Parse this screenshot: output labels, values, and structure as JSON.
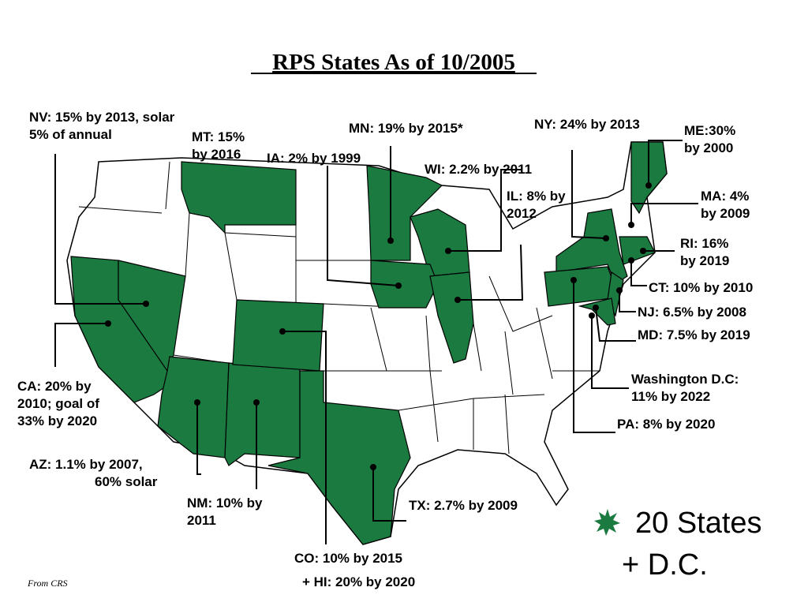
{
  "title": "RPS States As of 10/2005",
  "labels": [
    {
      "lines": [
        "NV: 15% by 2013, solar",
        "5% of annual"
      ]
    },
    {
      "lines": [
        "MT: 15%",
        "by 2016"
      ]
    },
    {
      "lines": [
        "IA: 2% by 1999"
      ]
    },
    {
      "lines": [
        "MN: 19% by 2015*"
      ]
    },
    {
      "lines": [
        "NY: 24% by 2013"
      ]
    },
    {
      "lines": [
        "ME:30%",
        "by 2000"
      ]
    },
    {
      "lines": [
        "WI: 2.2% by 2011"
      ]
    },
    {
      "lines": [
        "IL: 8% by",
        "2012"
      ]
    },
    {
      "lines": [
        "MA: 4%",
        "by 2009"
      ]
    },
    {
      "lines": [
        "RI: 16%",
        "by 2019"
      ]
    },
    {
      "lines": [
        "CT: 10% by 2010"
      ]
    },
    {
      "lines": [
        "NJ: 6.5% by 2008"
      ]
    },
    {
      "lines": [
        "MD: 7.5% by 2019"
      ]
    },
    {
      "lines": [
        "Washington D.C:",
        "11% by 2022"
      ]
    },
    {
      "lines": [
        "PA: 8% by 2020"
      ]
    },
    {
      "lines": [
        "CA: 20% by",
        "2010; goal of",
        "33% by 2020"
      ]
    },
    {
      "lines": [
        "AZ: 1.1%  by 2007,",
        "60% solar"
      ]
    },
    {
      "lines": [
        "NM: 10% by",
        "2011"
      ]
    },
    {
      "lines": [
        "TX:  2.7% by 2009"
      ]
    },
    {
      "lines": [
        "CO: 10% by 2015",
        "+ HI: 20% by 2020"
      ]
    }
  ],
  "legend": [
    "20 States",
    "+ D.C."
  ],
  "source": "From CRS"
}
